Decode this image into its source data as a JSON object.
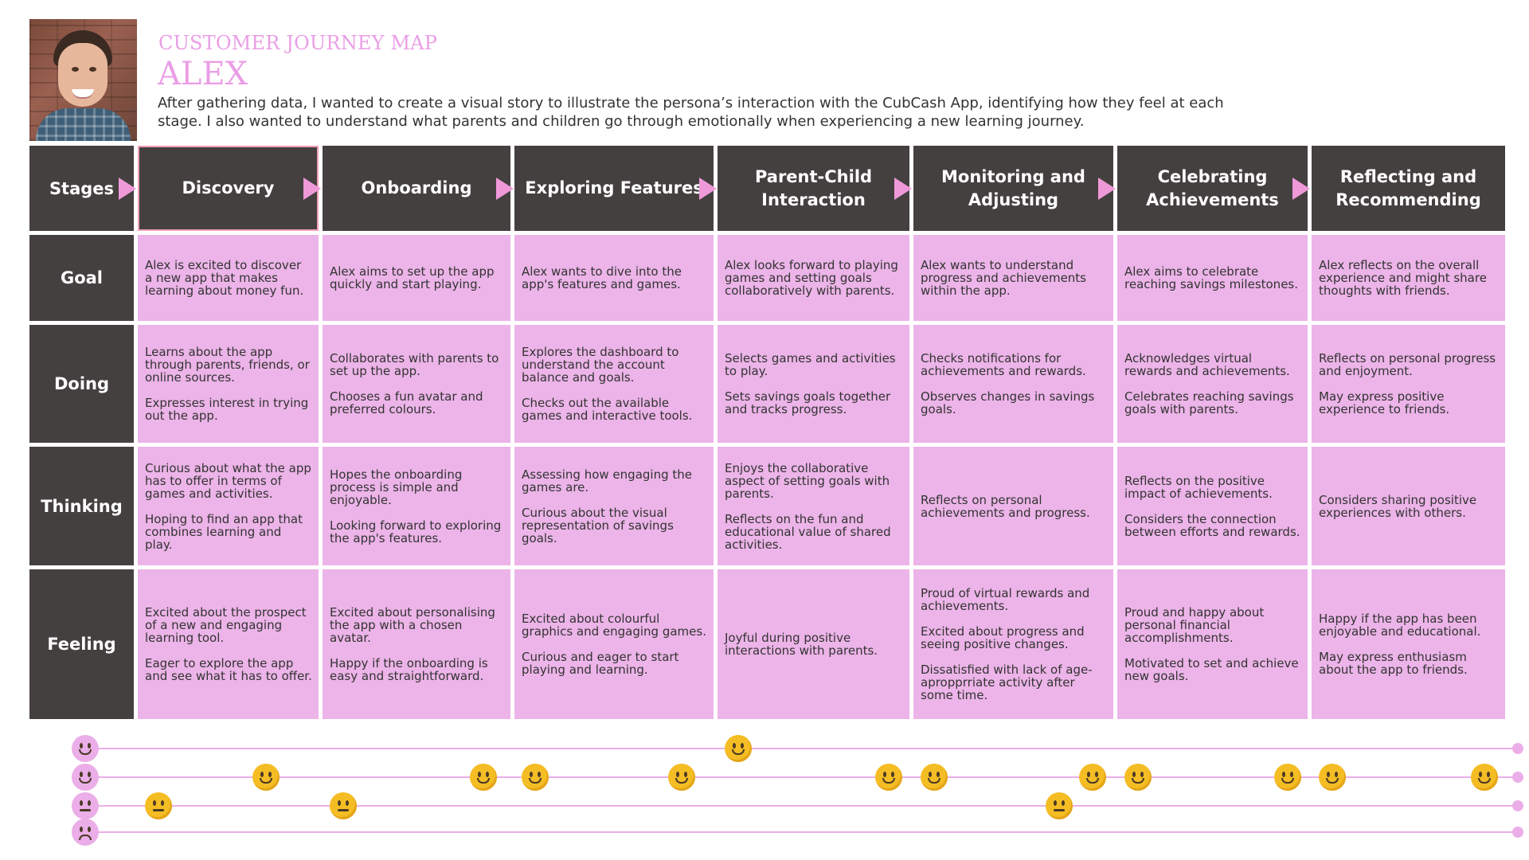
{
  "header": {
    "subtitle": "CUSTOMER JOURNEY MAP",
    "name": "ALEX",
    "intro": "After gathering data, I wanted to create a visual story to illustrate the persona’s interaction with the CubCash App, identifying how they feel at each stage. I also wanted to understand what parents and children go through emotionally when experiencing a new learning journey."
  },
  "rows": {
    "stages": "Stages",
    "goal": "Goal",
    "doing": "Doing",
    "thinking": "Thinking",
    "feeling": "Feeling"
  },
  "stages": [
    {
      "label": "Discovery",
      "goal": [
        "Alex is excited to discover a new app that makes learning about money fun."
      ],
      "doing": [
        "Learns about the app through parents, friends, or online sources.",
        "Expresses interest in trying out the app."
      ],
      "thinking": [
        "Curious about what the app has to offer in terms of games and activities.",
        "Hoping to find an app that combines learning and play."
      ],
      "feeling": [
        "Excited about the prospect of a new and engaging learning tool.",
        "Eager to explore the app and see what it has to offer."
      ]
    },
    {
      "label": "Onboarding",
      "goal": [
        "Alex aims to set up the app quickly and start playing."
      ],
      "doing": [
        "Collaborates with parents to set up the app.",
        "Chooses a fun avatar and preferred colours."
      ],
      "thinking": [
        "Hopes the onboarding process is simple and enjoyable.",
        "Looking forward to exploring the app's features."
      ],
      "feeling": [
        "Excited about personalising the app with a chosen avatar.",
        "Happy if the onboarding is easy and straightforward."
      ]
    },
    {
      "label": "Exploring Features",
      "goal": [
        "Alex wants to dive into the app's features and games."
      ],
      "doing": [
        "Explores the dashboard to understand the account balance and goals.",
        "Checks out the available games and interactive tools."
      ],
      "thinking": [
        "Assessing how engaging the games are.",
        "Curious about the visual representation of savings goals."
      ],
      "feeling": [
        "Excited about colourful graphics and engaging games.",
        "Curious and eager to start playing and learning."
      ]
    },
    {
      "label": "Parent-Child Interaction",
      "goal": [
        "Alex looks forward to playing games and setting goals collaboratively with parents."
      ],
      "doing": [
        "Selects games and activities to play.",
        "Sets savings goals together and tracks progress."
      ],
      "thinking": [
        "Enjoys the collaborative aspect of setting goals with parents.",
        "Reflects on the fun and educational value of shared activities."
      ],
      "feeling": [
        "Joyful during positive interactions with parents."
      ]
    },
    {
      "label": "Monitoring and Adjusting",
      "goal": [
        "Alex wants to understand progress and achievements within the app."
      ],
      "doing": [
        "Checks notifications for achievements and rewards.",
        "Observes changes in savings goals."
      ],
      "thinking": [
        "Reflects on personal achievements and progress."
      ],
      "feeling": [
        "Proud of virtual rewards and achievements.",
        "Excited about progress and seeing positive changes.",
        "Dissatisfied with lack of age-apropprriate activity after some time."
      ]
    },
    {
      "label": "Celebrating Achievements",
      "goal": [
        "Alex aims to celebrate reaching savings milestones."
      ],
      "doing": [
        "Acknowledges virtual rewards and achievements.",
        "Celebrates reaching savings goals with parents."
      ],
      "thinking": [
        "Reflects on the positive impact of achievements.",
        "Considers the connection between efforts and rewards."
      ],
      "feeling": [
        "Proud and happy about personal financial accomplishments.",
        "Motivated to set and achieve new goals."
      ]
    },
    {
      "label": "Reflecting and Recommending",
      "goal": [
        "Alex reflects on the overall experience and might share thoughts with friends."
      ],
      "doing": [
        "Reflects on personal progress and enjoyment.",
        "May express positive experience to friends."
      ],
      "thinking": [
        "Considers sharing positive experiences with others."
      ],
      "feeling": [
        "Happy if the app has been enjoyable and educational.",
        "May express enthusiasm about the app to friends."
      ]
    }
  ],
  "emotion_levels": [
    "very-happy",
    "happy",
    "neutral",
    "sad"
  ],
  "emotion_points": [
    {
      "stage": 1,
      "pos": "start",
      "level": "neutral"
    },
    {
      "stage": 1,
      "pos": "end",
      "level": "happy"
    },
    {
      "stage": 2,
      "pos": "start",
      "level": "neutral"
    },
    {
      "stage": 2,
      "pos": "end",
      "level": "happy"
    },
    {
      "stage": 3,
      "pos": "start",
      "level": "happy"
    },
    {
      "stage": 3,
      "pos": "end",
      "level": "happy"
    },
    {
      "stage": 4,
      "pos": "start",
      "level": "very-happy"
    },
    {
      "stage": 4,
      "pos": "end",
      "level": "happy"
    },
    {
      "stage": 5,
      "pos": "start",
      "level": "happy"
    },
    {
      "stage": 5,
      "pos": "end",
      "level": "happy"
    },
    {
      "stage": 5,
      "pos": "mid",
      "level": "neutral"
    },
    {
      "stage": 6,
      "pos": "start",
      "level": "happy"
    },
    {
      "stage": 6,
      "pos": "end",
      "level": "happy"
    },
    {
      "stage": 7,
      "pos": "start",
      "level": "happy"
    },
    {
      "stage": 7,
      "pos": "end",
      "level": "happy"
    }
  ],
  "colors": {
    "header_bg": "#454040",
    "cell_bg": "#ecb4e8",
    "accent": "#ea9ee6",
    "arrow": "#ef99d9",
    "emoji": "#f5bd24"
  }
}
